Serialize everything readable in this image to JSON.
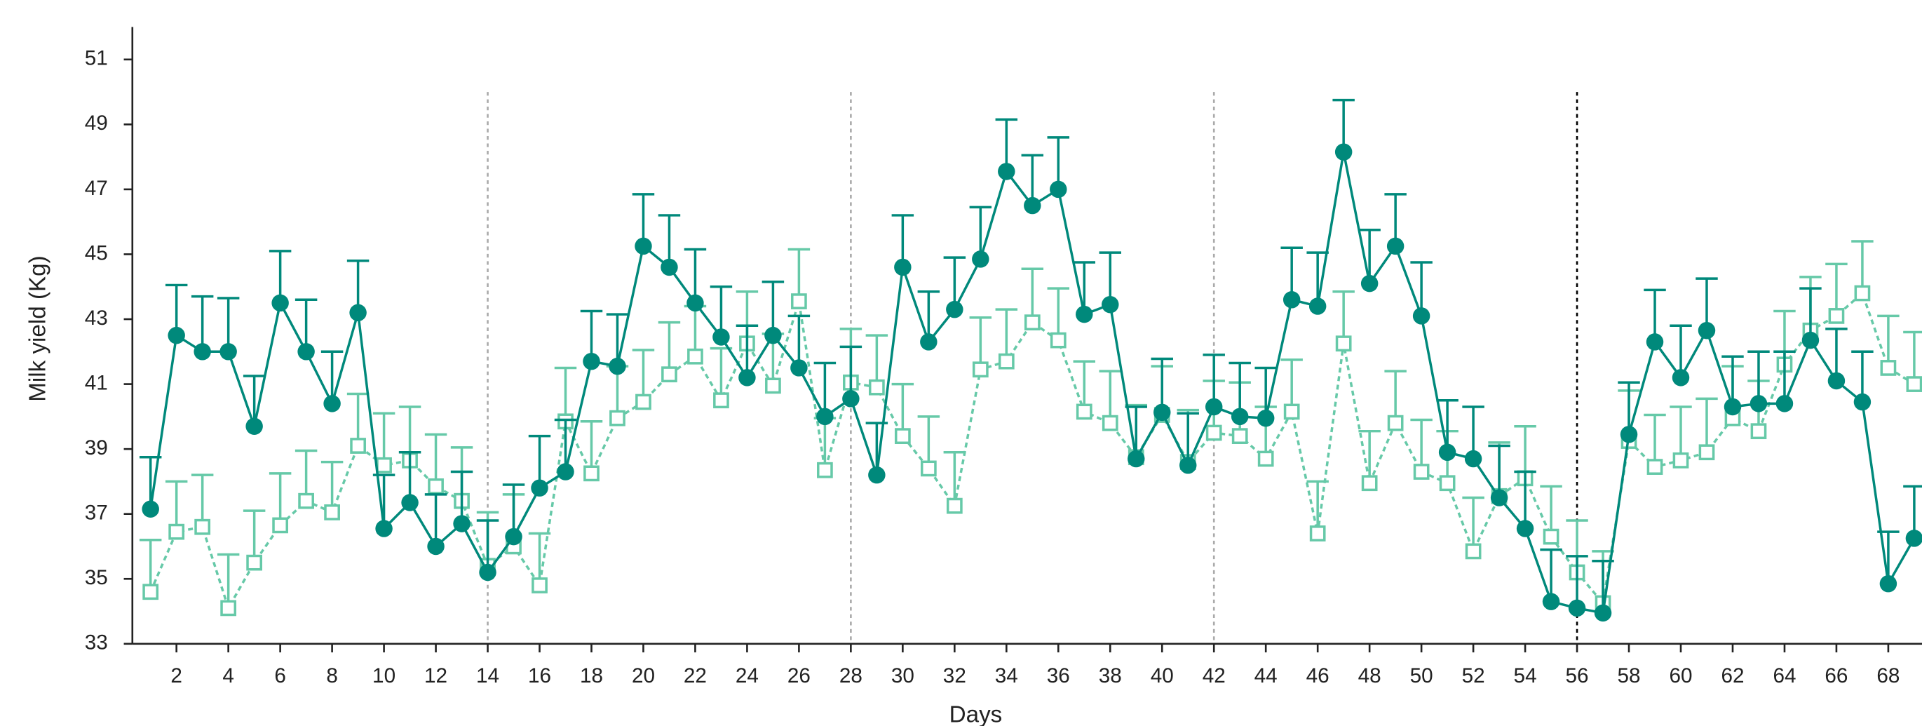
{
  "chart_data": {
    "type": "line",
    "x_label": "Days",
    "y_label": "Milk yield (Kg)",
    "x": [
      1,
      2,
      3,
      4,
      5,
      6,
      7,
      8,
      9,
      10,
      11,
      12,
      13,
      14,
      15,
      16,
      17,
      18,
      19,
      20,
      21,
      22,
      23,
      24,
      25,
      26,
      27,
      28,
      29,
      30,
      31,
      32,
      33,
      34,
      35,
      36,
      37,
      38,
      39,
      40,
      41,
      42,
      43,
      44,
      45,
      46,
      47,
      48,
      49,
      50,
      51,
      52,
      53,
      54,
      55,
      56,
      57,
      58,
      59,
      60,
      61,
      62,
      63,
      64,
      65,
      66,
      67,
      68,
      69
    ],
    "series": [
      {
        "color": "#00897b",
        "marker": "circle",
        "dashed": false,
        "values": [
          37.15,
          42.5,
          42.0,
          42.0,
          39.7,
          43.5,
          42.0,
          40.4,
          43.2,
          36.55,
          37.35,
          36.0,
          36.7,
          35.2,
          36.3,
          37.8,
          38.3,
          41.7,
          41.55,
          45.25,
          44.6,
          43.5,
          42.45,
          41.2,
          42.5,
          41.5,
          40.0,
          40.55,
          38.2,
          44.6,
          42.3,
          43.3,
          44.85,
          47.55,
          46.5,
          47.0,
          43.15,
          43.45,
          38.7,
          40.13,
          38.5,
          40.3,
          40.0,
          39.95,
          43.6,
          43.4,
          48.15,
          44.1,
          45.25,
          43.1,
          38.9,
          38.7,
          37.5,
          36.55,
          34.3,
          34.1,
          33.95,
          39.45,
          42.3,
          41.2,
          42.65,
          40.3,
          40.4,
          40.4,
          42.35,
          41.1,
          40.45,
          34.85,
          36.25
        ],
        "errors": [
          1.6,
          1.55,
          1.7,
          1.65,
          1.55,
          1.6,
          1.6,
          1.6,
          1.6,
          1.65,
          1.55,
          1.6,
          1.6,
          1.6,
          1.6,
          1.6,
          1.6,
          1.55,
          1.6,
          1.6,
          1.6,
          1.65,
          1.55,
          1.6,
          1.65,
          1.6,
          1.65,
          1.6,
          1.6,
          1.6,
          1.55,
          1.6,
          1.6,
          1.6,
          1.55,
          1.6,
          1.6,
          1.6,
          1.6,
          1.65,
          1.6,
          1.6,
          1.65,
          1.55,
          1.6,
          1.65,
          1.6,
          1.65,
          1.6,
          1.65,
          1.6,
          1.6,
          1.6,
          1.75,
          1.6,
          1.6,
          1.6,
          1.6,
          1.6,
          1.6,
          1.6,
          1.55,
          1.6,
          1.6,
          1.6,
          1.6,
          1.55,
          1.6,
          1.6
        ]
      },
      {
        "color": "#66c9a8",
        "marker": "square",
        "dashed": true,
        "values": [
          34.6,
          36.45,
          36.6,
          34.1,
          35.5,
          36.65,
          37.4,
          37.05,
          39.1,
          38.5,
          38.65,
          37.85,
          37.4,
          35.4,
          36.0,
          34.8,
          39.85,
          38.25,
          39.95,
          40.45,
          41.3,
          41.85,
          40.5,
          42.25,
          40.95,
          43.55,
          38.35,
          41.05,
          40.9,
          39.4,
          38.4,
          37.25,
          41.45,
          41.7,
          42.9,
          42.35,
          40.15,
          39.8,
          38.75,
          40.05,
          38.6,
          39.5,
          39.4,
          38.7,
          40.15,
          36.4,
          42.25,
          37.95,
          39.8,
          38.3,
          37.95,
          35.85,
          37.55,
          38.1,
          36.3,
          35.2,
          34.25,
          39.25,
          38.45,
          38.65,
          38.9,
          39.95,
          39.55,
          41.6,
          42.65,
          43.1,
          43.8,
          41.5,
          41.0
        ],
        "errors": [
          1.6,
          1.55,
          1.6,
          1.65,
          1.6,
          1.6,
          1.55,
          1.55,
          1.6,
          1.6,
          1.65,
          1.6,
          1.65,
          1.65,
          1.6,
          1.6,
          1.65,
          1.6,
          1.6,
          1.6,
          1.6,
          1.55,
          1.6,
          1.6,
          1.6,
          1.6,
          1.6,
          1.65,
          1.6,
          1.6,
          1.6,
          1.65,
          1.6,
          1.6,
          1.65,
          1.6,
          1.55,
          1.6,
          1.6,
          1.5,
          1.6,
          1.6,
          1.65,
          1.6,
          1.6,
          1.6,
          1.6,
          1.6,
          1.6,
          1.6,
          1.6,
          1.65,
          1.65,
          1.6,
          1.55,
          1.6,
          1.6,
          1.55,
          1.6,
          1.65,
          1.65,
          1.6,
          1.55,
          1.65,
          1.65,
          1.6,
          1.6,
          1.6,
          1.6
        ]
      }
    ],
    "vlines": [
      {
        "x": 14,
        "color": "#aaaaaa"
      },
      {
        "x": 28,
        "color": "#aaaaaa"
      },
      {
        "x": 42,
        "color": "#aaaaaa"
      },
      {
        "x": 56,
        "color": "#000000"
      }
    ],
    "vline_top": 50,
    "xlim": [
      0.3,
      69.3
    ],
    "ylim": [
      33,
      52
    ],
    "xticks": [
      2,
      4,
      6,
      8,
      10,
      12,
      14,
      16,
      18,
      20,
      22,
      24,
      26,
      28,
      30,
      32,
      34,
      36,
      38,
      40,
      42,
      44,
      46,
      48,
      50,
      52,
      54,
      56,
      58,
      60,
      62,
      64,
      66,
      68
    ],
    "yticks": [
      33,
      35,
      37,
      39,
      41,
      43,
      45,
      47,
      49,
      51
    ]
  }
}
